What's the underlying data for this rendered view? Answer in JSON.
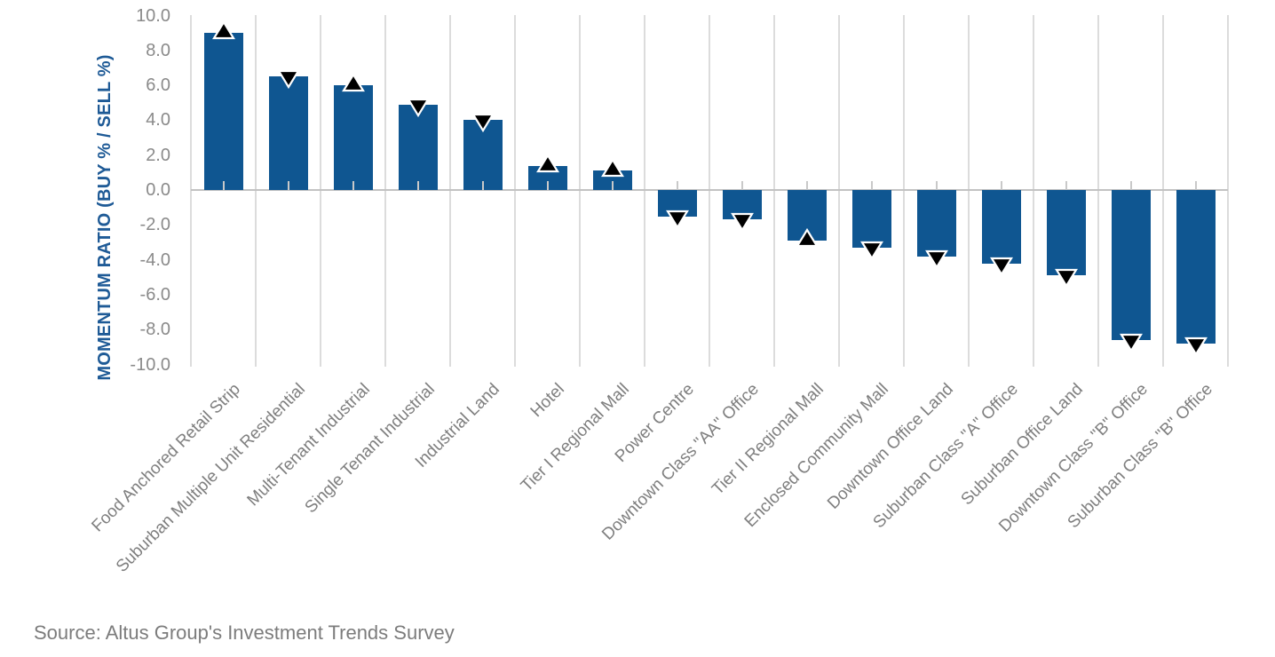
{
  "chart_data": {
    "type": "bar",
    "title": "",
    "xlabel": "",
    "ylabel": "MOMENTUM RATIO (BUY % / SELL %)",
    "ylim": [
      -10,
      10
    ],
    "y_tick_step": 2,
    "y_tick_labels": [
      "10.0",
      "8.0",
      "6.0",
      "4.0",
      "2.0",
      "0.0",
      "-2.0",
      "-4.0",
      "-6.0",
      "-8.0",
      "-10.0"
    ],
    "grid": "vertical-only",
    "legend_position": "none",
    "bar_color": "#0f5691",
    "marker_fill_color": "#000000",
    "marker_outline_color": "#ffffff",
    "categories": [
      "Food Anchored Retail Strip",
      "Suburban Multiple Unit Residential",
      "Multi-Tenant Industrial",
      "Single Tenant Industrial",
      "Industrial Land",
      "Hotel",
      "Tier I Regional Mall",
      "Power Centre",
      "Downtown Class \"AA\" Office",
      "Tier II Regional Mall",
      "Enclosed Community Mall",
      "Downtown Office Land",
      "Suburban Class \"A\" Office",
      "Suburban Office Land",
      "Downtown Class \"B\" Office",
      "Suburban Class \"B\" Office"
    ],
    "values": [
      9.0,
      6.5,
      6.0,
      4.9,
      4.0,
      1.4,
      1.1,
      -1.5,
      -1.7,
      -2.9,
      -3.3,
      -3.8,
      -4.2,
      -4.9,
      -8.6,
      -8.8
    ],
    "markers": [
      "up",
      "down",
      "up",
      "down",
      "down",
      "up",
      "up",
      "down",
      "down",
      "up",
      "down",
      "down",
      "down",
      "down",
      "down",
      "down"
    ]
  },
  "source": {
    "text": "Source: Altus Group's Investment Trends Survey"
  }
}
